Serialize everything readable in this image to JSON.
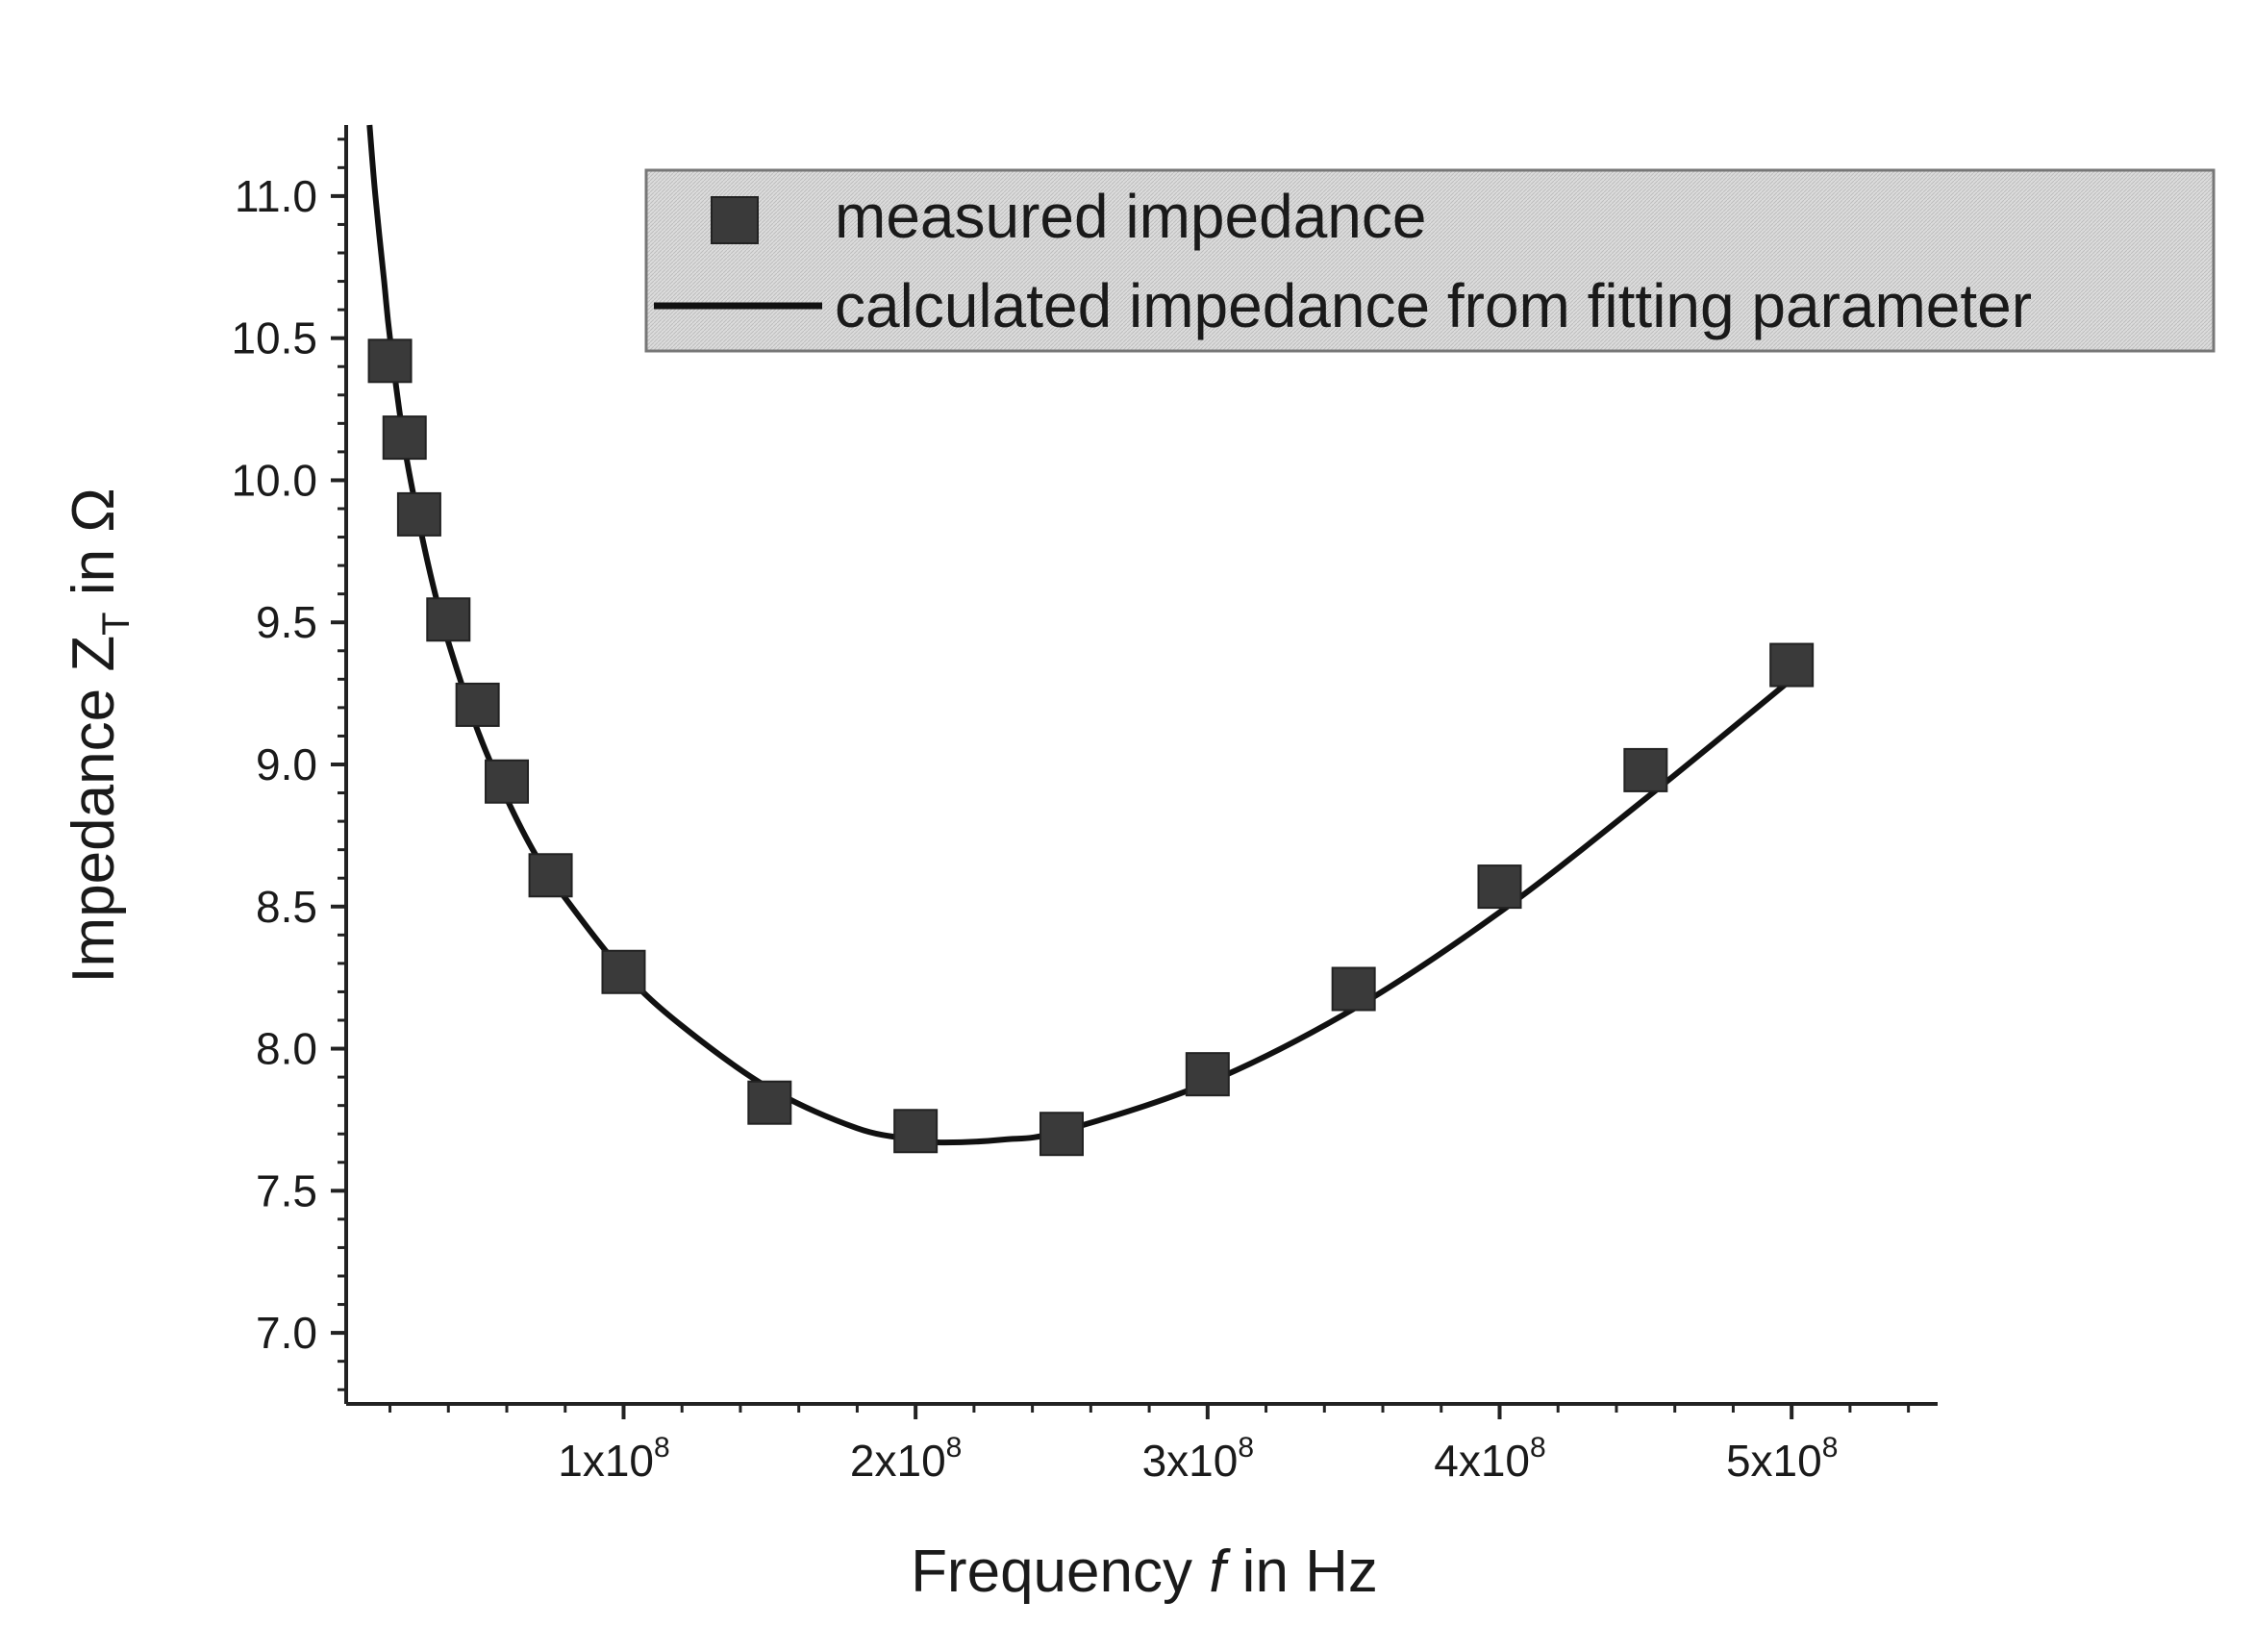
{
  "chart_data": {
    "type": "scatter",
    "title": "",
    "xlabel": {
      "prefix": "Frequency ",
      "variable": "f",
      "suffix": " in Hz"
    },
    "ylabel": {
      "prefix": "Impedance Z",
      "subscript": "T",
      "suffix": " in Ω"
    },
    "xlim": [
      5000000,
      550000000
    ],
    "ylim": [
      6.75,
      11.25
    ],
    "x_ticks": [
      {
        "value": 100000000,
        "mantissa": "1x10",
        "exponent": "8"
      },
      {
        "value": 200000000,
        "mantissa": "2x10",
        "exponent": "8"
      },
      {
        "value": 300000000,
        "mantissa": "3x10",
        "exponent": "8"
      },
      {
        "value": 400000000,
        "mantissa": "4x10",
        "exponent": "8"
      },
      {
        "value": 500000000,
        "mantissa": "5x10",
        "exponent": "8"
      }
    ],
    "y_ticks": [
      "7.0",
      "7.5",
      "8.0",
      "8.5",
      "9.0",
      "9.5",
      "10.0",
      "10.5",
      "11.0"
    ],
    "legend_position": "top-right",
    "series": [
      {
        "name": "measured impedance",
        "kind": "scatter",
        "marker": "square",
        "color": "#3a3a3a",
        "x": [
          20000000,
          25000000,
          30000000,
          40000000,
          50000000,
          60000000,
          75000000,
          100000000,
          150000000,
          200000000,
          250000000,
          300000000,
          350000000,
          400000000,
          450000000,
          500000000
        ],
        "y": [
          10.42,
          10.15,
          9.88,
          9.51,
          9.21,
          8.94,
          8.61,
          8.27,
          7.81,
          7.71,
          7.7,
          7.91,
          8.21,
          8.57,
          8.98,
          9.35
        ]
      },
      {
        "name": "calculated impedance from fitting parameter",
        "kind": "line",
        "color": "#111111",
        "x": [
          13000000,
          15000000,
          18000000,
          20000000,
          25000000,
          30000000,
          35000000,
          40000000,
          50000000,
          60000000,
          70000000,
          80000000,
          100000000,
          120000000,
          150000000,
          180000000,
          200000000,
          210000000,
          230000000,
          250000000,
          300000000,
          350000000,
          400000000,
          450000000,
          500000000
        ],
        "y": [
          11.25,
          11.0,
          10.7,
          10.5,
          10.12,
          9.85,
          9.62,
          9.43,
          9.12,
          8.88,
          8.68,
          8.53,
          8.27,
          8.08,
          7.86,
          7.72,
          7.68,
          7.67,
          7.68,
          7.71,
          7.88,
          8.14,
          8.48,
          8.88,
          9.3
        ]
      }
    ]
  }
}
